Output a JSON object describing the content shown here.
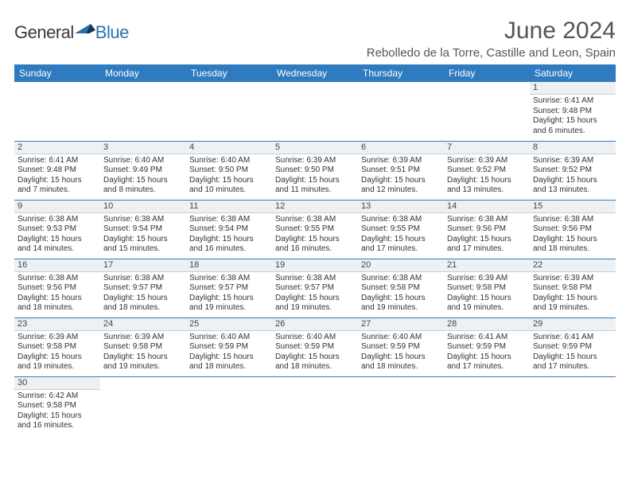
{
  "logo": {
    "part1": "General",
    "part2": "Blue"
  },
  "title": "June 2024",
  "location": "Rebolledo de la Torre, Castille and Leon, Spain",
  "colors": {
    "header_bg": "#2f7bbf",
    "header_text": "#ffffff",
    "daynum_bg": "#eef1f3",
    "rule": "#2f7bbf",
    "title_color": "#555555",
    "logo_gray": "#3a3a3a",
    "logo_blue": "#2f6fa8"
  },
  "weekdays": [
    "Sunday",
    "Monday",
    "Tuesday",
    "Wednesday",
    "Thursday",
    "Friday",
    "Saturday"
  ],
  "weeks": [
    [
      null,
      null,
      null,
      null,
      null,
      null,
      {
        "n": "1",
        "sr": "Sunrise: 6:41 AM",
        "ss": "Sunset: 9:48 PM",
        "dl": "Daylight: 15 hours and 6 minutes."
      }
    ],
    [
      {
        "n": "2",
        "sr": "Sunrise: 6:41 AM",
        "ss": "Sunset: 9:48 PM",
        "dl": "Daylight: 15 hours and 7 minutes."
      },
      {
        "n": "3",
        "sr": "Sunrise: 6:40 AM",
        "ss": "Sunset: 9:49 PM",
        "dl": "Daylight: 15 hours and 8 minutes."
      },
      {
        "n": "4",
        "sr": "Sunrise: 6:40 AM",
        "ss": "Sunset: 9:50 PM",
        "dl": "Daylight: 15 hours and 10 minutes."
      },
      {
        "n": "5",
        "sr": "Sunrise: 6:39 AM",
        "ss": "Sunset: 9:50 PM",
        "dl": "Daylight: 15 hours and 11 minutes."
      },
      {
        "n": "6",
        "sr": "Sunrise: 6:39 AM",
        "ss": "Sunset: 9:51 PM",
        "dl": "Daylight: 15 hours and 12 minutes."
      },
      {
        "n": "7",
        "sr": "Sunrise: 6:39 AM",
        "ss": "Sunset: 9:52 PM",
        "dl": "Daylight: 15 hours and 13 minutes."
      },
      {
        "n": "8",
        "sr": "Sunrise: 6:39 AM",
        "ss": "Sunset: 9:52 PM",
        "dl": "Daylight: 15 hours and 13 minutes."
      }
    ],
    [
      {
        "n": "9",
        "sr": "Sunrise: 6:38 AM",
        "ss": "Sunset: 9:53 PM",
        "dl": "Daylight: 15 hours and 14 minutes."
      },
      {
        "n": "10",
        "sr": "Sunrise: 6:38 AM",
        "ss": "Sunset: 9:54 PM",
        "dl": "Daylight: 15 hours and 15 minutes."
      },
      {
        "n": "11",
        "sr": "Sunrise: 6:38 AM",
        "ss": "Sunset: 9:54 PM",
        "dl": "Daylight: 15 hours and 16 minutes."
      },
      {
        "n": "12",
        "sr": "Sunrise: 6:38 AM",
        "ss": "Sunset: 9:55 PM",
        "dl": "Daylight: 15 hours and 16 minutes."
      },
      {
        "n": "13",
        "sr": "Sunrise: 6:38 AM",
        "ss": "Sunset: 9:55 PM",
        "dl": "Daylight: 15 hours and 17 minutes."
      },
      {
        "n": "14",
        "sr": "Sunrise: 6:38 AM",
        "ss": "Sunset: 9:56 PM",
        "dl": "Daylight: 15 hours and 17 minutes."
      },
      {
        "n": "15",
        "sr": "Sunrise: 6:38 AM",
        "ss": "Sunset: 9:56 PM",
        "dl": "Daylight: 15 hours and 18 minutes."
      }
    ],
    [
      {
        "n": "16",
        "sr": "Sunrise: 6:38 AM",
        "ss": "Sunset: 9:56 PM",
        "dl": "Daylight: 15 hours and 18 minutes."
      },
      {
        "n": "17",
        "sr": "Sunrise: 6:38 AM",
        "ss": "Sunset: 9:57 PM",
        "dl": "Daylight: 15 hours and 18 minutes."
      },
      {
        "n": "18",
        "sr": "Sunrise: 6:38 AM",
        "ss": "Sunset: 9:57 PM",
        "dl": "Daylight: 15 hours and 19 minutes."
      },
      {
        "n": "19",
        "sr": "Sunrise: 6:38 AM",
        "ss": "Sunset: 9:57 PM",
        "dl": "Daylight: 15 hours and 19 minutes."
      },
      {
        "n": "20",
        "sr": "Sunrise: 6:38 AM",
        "ss": "Sunset: 9:58 PM",
        "dl": "Daylight: 15 hours and 19 minutes."
      },
      {
        "n": "21",
        "sr": "Sunrise: 6:39 AM",
        "ss": "Sunset: 9:58 PM",
        "dl": "Daylight: 15 hours and 19 minutes."
      },
      {
        "n": "22",
        "sr": "Sunrise: 6:39 AM",
        "ss": "Sunset: 9:58 PM",
        "dl": "Daylight: 15 hours and 19 minutes."
      }
    ],
    [
      {
        "n": "23",
        "sr": "Sunrise: 6:39 AM",
        "ss": "Sunset: 9:58 PM",
        "dl": "Daylight: 15 hours and 19 minutes."
      },
      {
        "n": "24",
        "sr": "Sunrise: 6:39 AM",
        "ss": "Sunset: 9:58 PM",
        "dl": "Daylight: 15 hours and 19 minutes."
      },
      {
        "n": "25",
        "sr": "Sunrise: 6:40 AM",
        "ss": "Sunset: 9:59 PM",
        "dl": "Daylight: 15 hours and 18 minutes."
      },
      {
        "n": "26",
        "sr": "Sunrise: 6:40 AM",
        "ss": "Sunset: 9:59 PM",
        "dl": "Daylight: 15 hours and 18 minutes."
      },
      {
        "n": "27",
        "sr": "Sunrise: 6:40 AM",
        "ss": "Sunset: 9:59 PM",
        "dl": "Daylight: 15 hours and 18 minutes."
      },
      {
        "n": "28",
        "sr": "Sunrise: 6:41 AM",
        "ss": "Sunset: 9:59 PM",
        "dl": "Daylight: 15 hours and 17 minutes."
      },
      {
        "n": "29",
        "sr": "Sunrise: 6:41 AM",
        "ss": "Sunset: 9:59 PM",
        "dl": "Daylight: 15 hours and 17 minutes."
      }
    ],
    [
      {
        "n": "30",
        "sr": "Sunrise: 6:42 AM",
        "ss": "Sunset: 9:58 PM",
        "dl": "Daylight: 15 hours and 16 minutes."
      },
      null,
      null,
      null,
      null,
      null,
      null
    ]
  ]
}
